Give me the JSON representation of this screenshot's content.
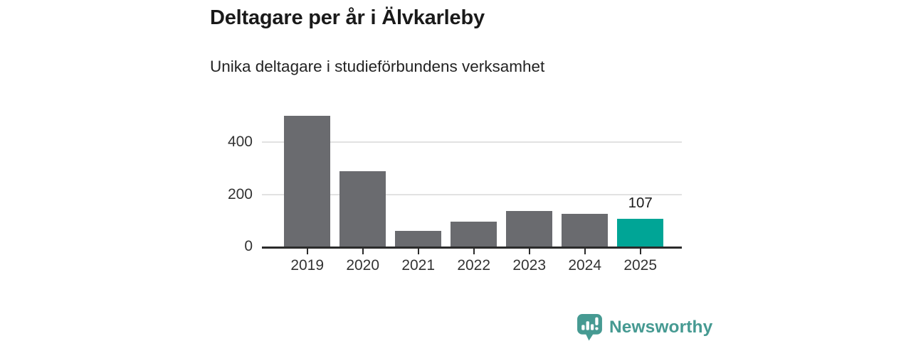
{
  "chart_data": {
    "type": "bar",
    "title": "Deltagare per år i Älvkarleby",
    "subtitle": "Unika deltagare i studieförbundens verksamhet",
    "categories": [
      "2019",
      "2020",
      "2021",
      "2022",
      "2023",
      "2024",
      "2025"
    ],
    "values": [
      500,
      288,
      61,
      96,
      135,
      124,
      107
    ],
    "highlight_index": 6,
    "highlight_label": "107",
    "xlabel": "",
    "ylabel": "",
    "yticks": [
      0,
      200,
      400
    ],
    "ylim": [
      0,
      535
    ],
    "grid": true,
    "legend": false,
    "bar_color": "#6a6b6f",
    "highlight_color": "#00a596",
    "axis_line_color": "#2b2b2b",
    "gridline_color": "#e2e2e2"
  },
  "branding": {
    "logo_text": "Newsworthy",
    "logo_color": "#469a92",
    "logo_icon": "bar-chart-speech-bubble-icon"
  }
}
